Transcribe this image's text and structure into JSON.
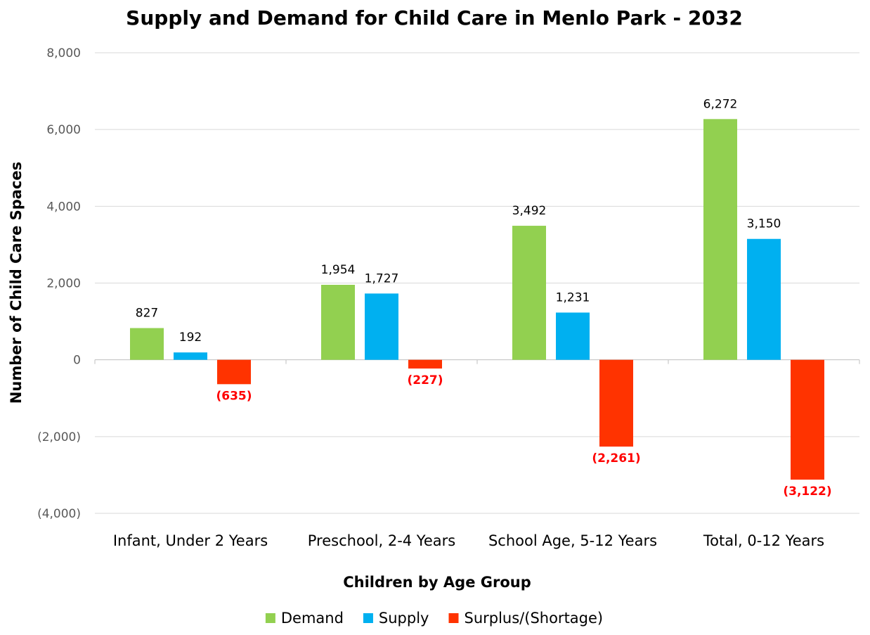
{
  "chart_data": {
    "type": "bar",
    "title": "Supply and Demand for Child Care in Menlo Park - 2032",
    "xlabel": "Children by Age Group",
    "ylabel": "Number of Child Care Spaces",
    "ylim": [
      -4000,
      8000
    ],
    "yticks": [
      8000,
      6000,
      4000,
      2000,
      0,
      -2000,
      -4000
    ],
    "ytick_labels": [
      "8,000",
      "6,000",
      "4,000",
      "2,000",
      "0",
      "(2,000)",
      "(4,000)"
    ],
    "grid": true,
    "legend_position": "bottom",
    "categories": [
      "Infant, Under 2 Years",
      "Preschool, 2-4 Years",
      "School Age, 5-12 Years",
      "Total, 0-12 Years"
    ],
    "series": [
      {
        "name": "Demand",
        "color": "#92d050",
        "values": [
          827,
          1954,
          3492,
          6272
        ],
        "labels": [
          "827",
          "1,954",
          "3,492",
          "6,272"
        ]
      },
      {
        "name": "Supply",
        "color": "#00b0f0",
        "values": [
          192,
          1727,
          1231,
          3150
        ],
        "labels": [
          "192",
          "1,727",
          "1,231",
          "3,150"
        ]
      },
      {
        "name": "Surplus/(Shortage)",
        "color": "#ff3300",
        "values": [
          -635,
          -227,
          -2261,
          -3122
        ],
        "labels": [
          "(635)",
          "(227)",
          "(2,261)",
          "(3,122)"
        ]
      }
    ]
  }
}
